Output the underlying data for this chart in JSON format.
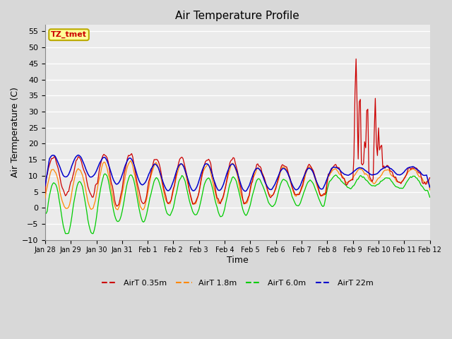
{
  "title": "Air Temperature Profile",
  "xlabel": "Time",
  "ylabel": "Air Termperature (C)",
  "ylim": [
    -10,
    57
  ],
  "yticks": [
    -10,
    -5,
    0,
    5,
    10,
    15,
    20,
    25,
    30,
    35,
    40,
    45,
    50,
    55
  ],
  "bg_color": "#d8d8d8",
  "plot_bg_color": "#ebebeb",
  "colors": {
    "AirT 0.35m": "#cc0000",
    "AirT 1.8m": "#ff8800",
    "AirT 6.0m": "#00cc00",
    "AirT 22m": "#0000cc"
  },
  "legend_labels": [
    "AirT 0.35m",
    "AirT 1.8m",
    "AirT 6.0m",
    "AirT 22m"
  ],
  "annotation_text": "TZ_tmet",
  "annotation_color": "#cc0000",
  "annotation_bg": "#ffff99",
  "annotation_border": "#bbaa00",
  "tick_labels": [
    "Jan 28",
    "Jan 29",
    "Jan 30",
    "Jan 31",
    "Feb 1",
    "Feb 2",
    "Feb 3",
    "Feb 4",
    "Feb 5",
    "Feb 6",
    "Feb 7",
    "Feb 8",
    "Feb 9",
    "Feb 10",
    "Feb 11",
    "Feb 12"
  ]
}
